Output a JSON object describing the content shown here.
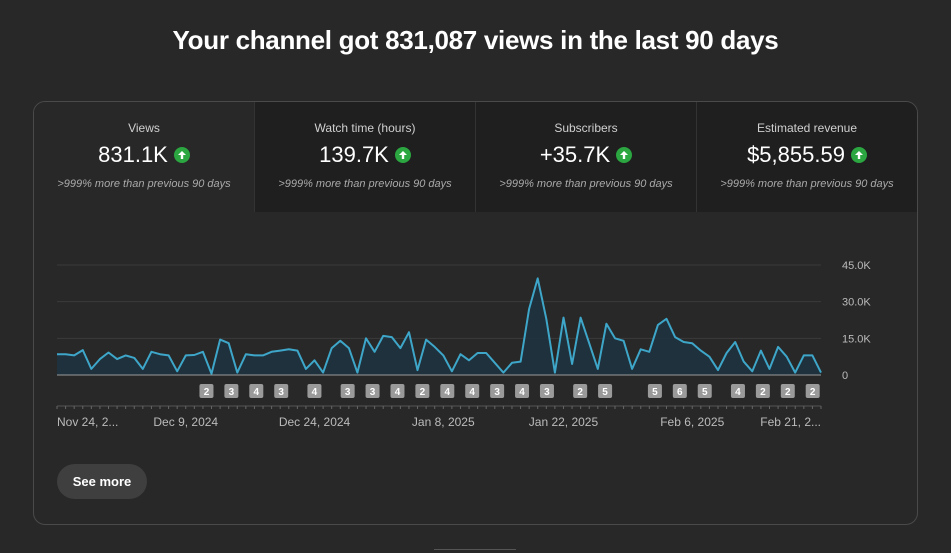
{
  "headline": "Your channel got 831,087 views in the last 90 days",
  "metrics": [
    {
      "label": "Views",
      "value": "831.1K",
      "sub": ">999% more than previous 90 days",
      "trend": "up"
    },
    {
      "label": "Watch time (hours)",
      "value": "139.7K",
      "sub": ">999% more than previous 90 days",
      "trend": "up"
    },
    {
      "label": "Subscribers",
      "value": "+35.7K",
      "sub": ">999% more than previous 90 days",
      "trend": "up"
    },
    {
      "label": "Estimated revenue",
      "value": "$5,855.59",
      "sub": ">999% more than previous 90 days",
      "trend": "up"
    }
  ],
  "see_more_label": "See more",
  "colors": {
    "line": "#3ea6c9",
    "fill": "#1d3340",
    "up": "#2ba640",
    "grid": "#3a3a3a",
    "badge": "#9a9a9a"
  },
  "chart_data": {
    "type": "area",
    "metric": "Views",
    "y_ticks": [
      "45.0K",
      "30.0K",
      "15.0K",
      "0"
    ],
    "ylim": [
      0,
      45000
    ],
    "x_tick_labels": [
      "Nov 24, 2...",
      "Dec 9, 2024",
      "Dec 24, 2024",
      "Jan 8, 2025",
      "Jan 22, 2025",
      "Feb 6, 2025",
      "Feb 21, 2..."
    ],
    "x_tick_index": [
      0,
      15,
      30,
      45,
      59,
      74,
      89
    ],
    "values": [
      8500,
      8500,
      8000,
      10200,
      2500,
      6500,
      9200,
      6500,
      8000,
      7000,
      2500,
      9500,
      8500,
      8000,
      1500,
      8000,
      8200,
      9500,
      500,
      14500,
      13000,
      1000,
      8500,
      8000,
      8000,
      9500,
      10000,
      10500,
      10000,
      2500,
      6000,
      1000,
      11000,
      14000,
      11000,
      1000,
      15000,
      9500,
      16000,
      15500,
      11000,
      17500,
      2000,
      14500,
      11500,
      8000,
      1500,
      8500,
      6000,
      9000,
      9000,
      5000,
      1000,
      5000,
      5500,
      27000,
      39500,
      23000,
      1000,
      23500,
      4500,
      23500,
      13000,
      2500,
      21000,
      15000,
      14000,
      2500,
      10500,
      9500,
      20500,
      23000,
      15500,
      13500,
      13000,
      10000,
      7500,
      2000,
      9000,
      13500,
      5500,
      1500,
      10000,
      2500,
      11500,
      7500,
      1000,
      8000,
      8000,
      1000
    ],
    "markers": [
      {
        "label": "2",
        "index": 18
      },
      {
        "label": "3",
        "index": 21
      },
      {
        "label": "4",
        "index": 24
      },
      {
        "label": "3",
        "index": 27
      },
      {
        "label": "4",
        "index": 31
      },
      {
        "label": "3",
        "index": 35
      },
      {
        "label": "3",
        "index": 38
      },
      {
        "label": "4",
        "index": 41
      },
      {
        "label": "2",
        "index": 44
      },
      {
        "label": "4",
        "index": 47
      },
      {
        "label": "4",
        "index": 50
      },
      {
        "label": "3",
        "index": 53
      },
      {
        "label": "4",
        "index": 56
      },
      {
        "label": "3",
        "index": 59
      },
      {
        "label": "2",
        "index": 63
      },
      {
        "label": "5",
        "index": 66
      },
      {
        "label": "5",
        "index": 72
      },
      {
        "label": "6",
        "index": 75
      },
      {
        "label": "5",
        "index": 78
      },
      {
        "label": "4",
        "index": 82
      },
      {
        "label": "2",
        "index": 85
      },
      {
        "label": "2",
        "index": 88
      },
      {
        "label": "2",
        "index": 91
      }
    ]
  }
}
